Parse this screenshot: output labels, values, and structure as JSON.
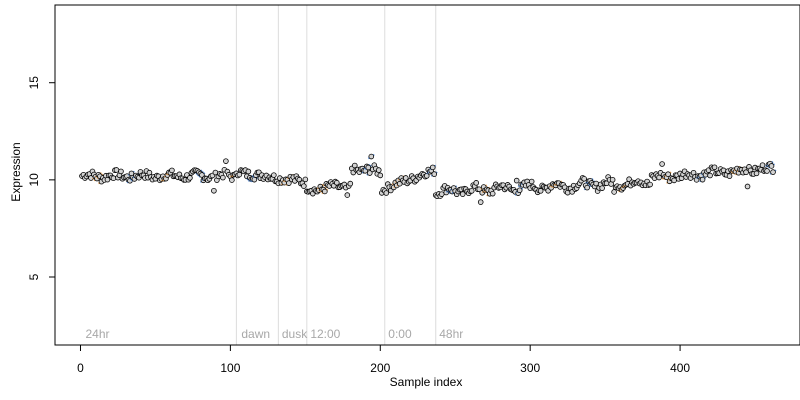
{
  "chart_data": {
    "type": "scatter",
    "title": "",
    "xlabel": "Sample index",
    "ylabel": "Expression",
    "xlim": [
      -17,
      480
    ],
    "ylim": [
      1.5,
      19
    ],
    "x_ticks": [
      0,
      100,
      200,
      300,
      400
    ],
    "x_tick_labels": [
      "0",
      "100",
      "200",
      "300",
      "400"
    ],
    "y_ticks": [
      5,
      10,
      15
    ],
    "y_tick_labels": [
      "5",
      "10",
      "15"
    ],
    "grid": false,
    "legend": "none",
    "phase_boundaries": [
      104,
      132,
      151,
      203,
      237
    ],
    "phase_labels": [
      {
        "x": 2,
        "text": "24hr"
      },
      {
        "x": 106,
        "text": "dawn"
      },
      {
        "x": 133,
        "text": "dusk"
      },
      {
        "x": 152,
        "text": "12:00"
      },
      {
        "x": 204,
        "text": "0:00"
      },
      {
        "x": 238,
        "text": "48hr"
      }
    ],
    "segments": [
      {
        "x_start": 1,
        "x_end": 103,
        "y_start": 10.2,
        "y_end": 10.2,
        "slope": -0.3,
        "wave": 0.1
      },
      {
        "x_start": 104,
        "x_end": 150,
        "y_start": 10.4,
        "y_end": 9.9,
        "slope": 0.0,
        "wave": 0.05
      },
      {
        "x_start": 151,
        "x_end": 180,
        "y_start": 9.5,
        "y_end": 9.7,
        "slope": 0.2,
        "wave": 0.1
      },
      {
        "x_start": 181,
        "x_end": 200,
        "y_start": 10.6,
        "y_end": 10.4,
        "slope": 0.0,
        "wave": 0.1
      },
      {
        "x_start": 201,
        "x_end": 236,
        "y_start": 9.5,
        "y_end": 10.5,
        "slope": 1.1,
        "wave": 0.05
      },
      {
        "x_start": 237,
        "x_end": 380,
        "y_start": 9.4,
        "y_end": 9.9,
        "slope": 0.5,
        "wave": 0.15
      },
      {
        "x_start": 381,
        "x_end": 462,
        "y_start": 10.1,
        "y_end": 10.6,
        "slope": 0.5,
        "wave": 0.1
      }
    ],
    "point_fill": "#d3d3d3",
    "highlight_colors": [
      "#e69f52",
      "#5b8fd6"
    ],
    "colors": {
      "phase_line": "#dcdcdc",
      "phase_text": "#a8a8a8",
      "axis": "#000000"
    }
  }
}
